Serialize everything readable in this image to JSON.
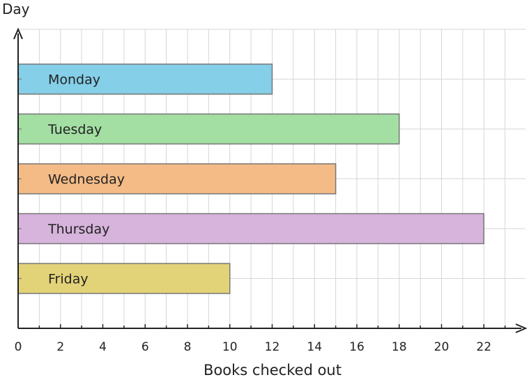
{
  "chart_data": {
    "type": "bar",
    "orientation": "horizontal",
    "categories": [
      "Monday",
      "Tuesday",
      "Wednesday",
      "Thursday",
      "Friday"
    ],
    "values": [
      12,
      18,
      15,
      22,
      10
    ],
    "colors": [
      "#85cfe8",
      "#a3dea3",
      "#f4bb87",
      "#d6b4dc",
      "#e3d378"
    ],
    "xlabel": "Books checked out",
    "ylabel": "Day",
    "xlim": [
      0,
      24
    ],
    "xticks": [
      "0",
      "2",
      "4",
      "6",
      "8",
      "10",
      "12",
      "14",
      "16",
      "18",
      "20",
      "22"
    ],
    "grid": true
  }
}
